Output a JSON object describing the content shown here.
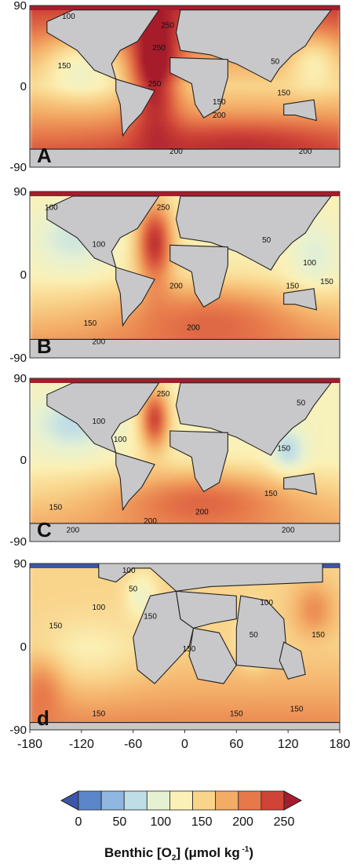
{
  "chart_data": {
    "type": "heatmap",
    "panels": [
      {
        "label": "A",
        "contour_labels": [
          "100",
          "150",
          "250",
          "250",
          "250",
          "150",
          "200",
          "200",
          "200",
          "50",
          "150"
        ]
      },
      {
        "label": "B",
        "contour_labels": [
          "100",
          "100",
          "150",
          "250",
          "200",
          "200",
          "200",
          "150",
          "100",
          "50",
          "150"
        ]
      },
      {
        "label": "C",
        "contour_labels": [
          "100",
          "100",
          "150",
          "250",
          "200",
          "200",
          "200",
          "150",
          "150",
          "50",
          "200"
        ]
      },
      {
        "label": "d",
        "contour_labels": [
          "100",
          "150",
          "100",
          "50",
          "150",
          "150",
          "150",
          "100",
          "50",
          "150",
          "150",
          "150"
        ]
      }
    ],
    "y_ticks": [
      "90",
      "0",
      "-90"
    ],
    "x_ticks": [
      "-180",
      "-120",
      "-60",
      "0",
      "60",
      "120",
      "180"
    ],
    "xlim": [
      -180,
      180
    ],
    "ylim": [
      -90,
      90
    ],
    "colorbar": {
      "levels": [
        0,
        25,
        50,
        75,
        100,
        125,
        150,
        175,
        200,
        225,
        250
      ],
      "tick_labels": [
        "0",
        "50",
        "100",
        "150",
        "200",
        "250"
      ],
      "colors": [
        "#3b55a8",
        "#5b87c8",
        "#8fb7df",
        "#bfdde6",
        "#e6f1d2",
        "#fbf1b6",
        "#f9d48b",
        "#f3ac66",
        "#e6784a",
        "#cf4437",
        "#a61c2c"
      ],
      "title_main": "Benthic [O",
      "title_sub": "2",
      "title_end": "] (μmol kg",
      "title_sup": " -1",
      "title_close": ")"
    },
    "land_color": "#c8c8ca"
  }
}
